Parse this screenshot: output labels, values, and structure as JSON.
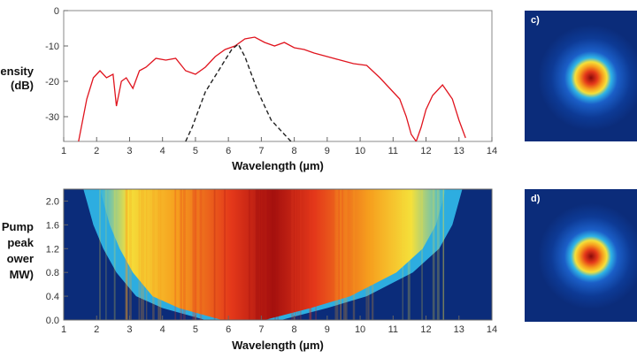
{
  "chart_data": [
    {
      "type": "line",
      "xlabel": "Wavelength (µm)",
      "ylabel_lines": [
        "ensity",
        "(dB)"
      ],
      "xlim": [
        1,
        14
      ],
      "ylim": [
        -37,
        0
      ],
      "xticks": [
        "1",
        "2",
        "3",
        "4",
        "5",
        "6",
        "7",
        "8",
        "9",
        "10",
        "11",
        "12",
        "13",
        "14"
      ],
      "yticks": [
        "0",
        "-10",
        "-20",
        "-30"
      ],
      "series": [
        {
          "style": "solid",
          "color": "#e0141e",
          "x": [
            1.45,
            1.7,
            1.9,
            2.1,
            2.3,
            2.5,
            2.6,
            2.75,
            2.9,
            3.1,
            3.3,
            3.5,
            3.8,
            4.1,
            4.4,
            4.7,
            5.0,
            5.3,
            5.6,
            5.9,
            6.2,
            6.5,
            6.8,
            7.1,
            7.4,
            7.7,
            8.0,
            8.3,
            8.6,
            9.0,
            9.4,
            9.8,
            10.2,
            10.6,
            10.9,
            11.2,
            11.4,
            11.55,
            11.7,
            11.85,
            12.0,
            12.2,
            12.5,
            12.8,
            13.0,
            13.2
          ],
          "y": [
            -37,
            -25,
            -19,
            -17,
            -19,
            -18,
            -27,
            -20,
            -19,
            -22,
            -17,
            -16,
            -13.5,
            -14,
            -13.5,
            -17,
            -18,
            -16,
            -13,
            -11,
            -10,
            -8,
            -7.5,
            -9,
            -10,
            -9,
            -10.5,
            -11,
            -12,
            -13,
            -14,
            -15,
            -15.5,
            -19,
            -22,
            -25,
            -30,
            -35,
            -37,
            -33,
            -28,
            -24,
            -21,
            -25,
            -31,
            -36
          ]
        },
        {
          "style": "dashed",
          "color": "#222222",
          "x": [
            4.7,
            4.9,
            5.1,
            5.3,
            5.5,
            5.7,
            5.9,
            6.1,
            6.3,
            6.5,
            6.7,
            6.9,
            7.1,
            7.3,
            7.5,
            7.7,
            7.9
          ],
          "y": [
            -37,
            -33,
            -28,
            -23,
            -20,
            -17,
            -14,
            -11,
            -9.5,
            -13,
            -18,
            -23,
            -27,
            -31,
            -33,
            -35,
            -37
          ]
        }
      ]
    },
    {
      "type": "heatmap",
      "xlabel": "Wavelength (µm)",
      "ylabel_lines": [
        "Pump",
        "peak",
        "ower",
        "MW)"
      ],
      "xlim": [
        1,
        14
      ],
      "ylim": [
        0,
        2.2
      ],
      "xticks": [
        "1",
        "2",
        "3",
        "4",
        "5",
        "6",
        "7",
        "8",
        "9",
        "10",
        "11",
        "12",
        "13",
        "14"
      ],
      "yticks": [
        "0.0",
        "0.4",
        "0.8",
        "1.2",
        "1.6",
        "2.0"
      ],
      "colormap": [
        "#0b1f78",
        "#1b5fc8",
        "#2fb4e6",
        "#9ddc6a",
        "#f5e03a",
        "#f6a01e",
        "#e4381a",
        "#a5100e"
      ],
      "spectral_edges_at_power": {
        "power": [
          0.0,
          0.2,
          0.4,
          0.8,
          1.2,
          1.6,
          2.0,
          2.2
        ],
        "short_edge_um": [
          5.3,
          4.0,
          3.2,
          2.6,
          2.2,
          1.9,
          1.7,
          1.6
        ],
        "long_edge_um": [
          7.6,
          9.0,
          10.2,
          11.6,
          12.4,
          12.8,
          13.0,
          13.1
        ]
      }
    },
    {
      "type": "heatmap",
      "panel": "c)",
      "description_value": "beam profile"
    },
    {
      "type": "heatmap",
      "panel": "d)",
      "description_value": "beam profile"
    }
  ],
  "panels": {
    "c_label": "c)",
    "d_label": "d)"
  },
  "colors": {
    "background": "#0b2c7a",
    "line_red": "#e0141e",
    "dashed": "#222222"
  }
}
